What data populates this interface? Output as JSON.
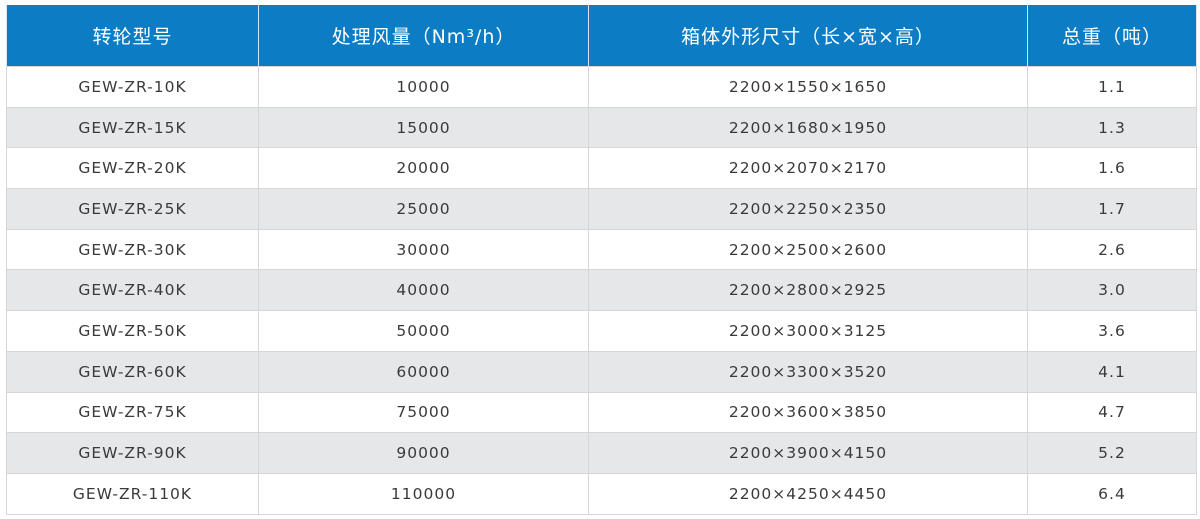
{
  "table": {
    "headers": [
      "转轮型号",
      "处理风量（Nm³/h）",
      "箱体外形尺寸（长×宽×高）",
      "总重（吨）"
    ],
    "rows": [
      [
        "GEW-ZR-10K",
        "10000",
        "2200×1550×1650",
        "1.1"
      ],
      [
        "GEW-ZR-15K",
        "15000",
        "2200×1680×1950",
        "1.3"
      ],
      [
        "GEW-ZR-20K",
        "20000",
        "2200×2070×2170",
        "1.6"
      ],
      [
        "GEW-ZR-25K",
        "25000",
        "2200×2250×2350",
        "1.7"
      ],
      [
        "GEW-ZR-30K",
        "30000",
        "2200×2500×2600",
        "2.6"
      ],
      [
        "GEW-ZR-40K",
        "40000",
        "2200×2800×2925",
        "3.0"
      ],
      [
        "GEW-ZR-50K",
        "50000",
        "2200×3000×3125",
        "3.6"
      ],
      [
        "GEW-ZR-60K",
        "60000",
        "2200×3300×3520",
        "4.1"
      ],
      [
        "GEW-ZR-75K",
        "75000",
        "2200×3600×3850",
        "4.7"
      ],
      [
        "GEW-ZR-90K",
        "90000",
        "2200×3900×4150",
        "5.2"
      ],
      [
        "GEW-ZR-110K",
        "110000",
        "2200×4250×4450",
        "6.4"
      ]
    ],
    "colors": {
      "header_bg": "#0c7cc4",
      "alt_row_bg": "#e6e7e9"
    }
  }
}
